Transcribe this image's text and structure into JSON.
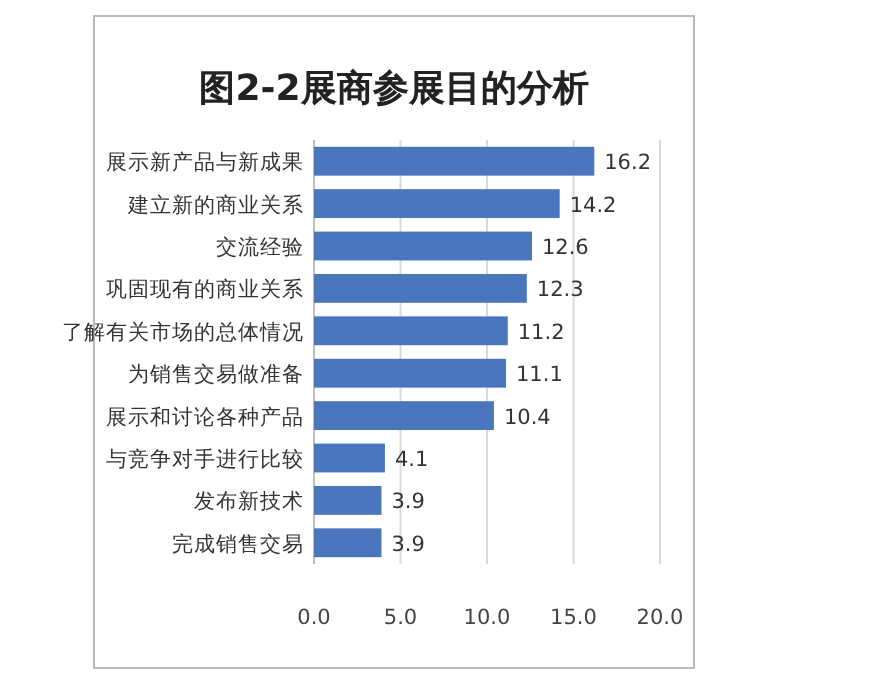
{
  "chart_data": {
    "type": "bar",
    "orientation": "horizontal",
    "title": "图2-2展商参展目的分析",
    "categories": [
      "展示新产品与新成果",
      "建立新的商业关系",
      "交流经验",
      "巩固现有的商业关系",
      "了解有关市场的总体情况",
      "为销售交易做准备",
      "展示和讨论各种产品",
      "与竞争对手进行比较",
      "发布新技术",
      "完成销售交易"
    ],
    "values": [
      16.2,
      14.2,
      12.6,
      12.3,
      11.2,
      11.1,
      10.4,
      4.1,
      3.9,
      3.9
    ],
    "color": "#4a76be",
    "xlim": [
      0,
      20
    ],
    "xticks": [
      {
        "value": 0,
        "label": "0.0"
      },
      {
        "value": 5,
        "label": "5.0"
      },
      {
        "value": 10,
        "label": "10.0"
      },
      {
        "value": 15,
        "label": "15.0"
      },
      {
        "value": 20,
        "label": "20.0"
      }
    ],
    "grid": "x",
    "data_labels": true
  }
}
